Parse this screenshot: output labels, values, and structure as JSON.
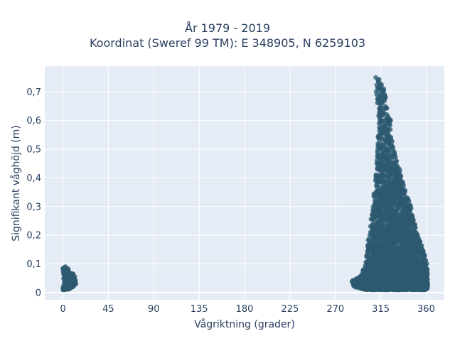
{
  "chart_data": {
    "type": "scatter",
    "title_line1": "År 1979 - 2019",
    "title_line2": "Koordinat (Sweref 99 TM): E 348905, N 6259103",
    "xlabel": "Vågriktning (grader)",
    "ylabel": "Signifikant våghöjd (m)",
    "xlim": [
      -18,
      378
    ],
    "ylim": [
      -0.025,
      0.79
    ],
    "x_ticks": [
      0,
      45,
      90,
      135,
      180,
      225,
      270,
      315,
      360
    ],
    "x_tick_labels": [
      "0",
      "45",
      "90",
      "135",
      "180",
      "225",
      "270",
      "315",
      "360"
    ],
    "y_ticks": [
      0,
      0.1,
      0.2,
      0.3,
      0.4,
      0.5,
      0.6,
      0.7
    ],
    "y_tick_labels": [
      "0",
      "0,1",
      "0,2",
      "0,3",
      "0,4",
      "0,5",
      "0,6",
      "0,7"
    ],
    "marker_color": "#2e5a70",
    "plot_bg": "#E5ECF6",
    "grid": true,
    "clusters": [
      {
        "name": "north",
        "direction_range": [
          0,
          13
        ],
        "height_range": [
          0.01,
          0.095
        ],
        "envelope": [
          [
            0,
            0.01
          ],
          [
            0,
            0.095
          ],
          [
            5,
            0.09
          ],
          [
            10,
            0.07
          ],
          [
            13,
            0.05
          ],
          [
            13,
            0.025
          ],
          [
            5,
            0.01
          ]
        ]
      },
      {
        "name": "northwest",
        "direction_range": [
          286,
          362
        ],
        "height_range": [
          0.01,
          0.75
        ],
        "peak": [
          310,
          0.75
        ],
        "envelope": [
          [
            286,
            0.04
          ],
          [
            295,
            0.06
          ],
          [
            300,
            0.1
          ],
          [
            303,
            0.2
          ],
          [
            307,
            0.3
          ],
          [
            311,
            0.45
          ],
          [
            313,
            0.62
          ],
          [
            310,
            0.7
          ],
          [
            311,
            0.74
          ],
          [
            314,
            0.75
          ],
          [
            318,
            0.72
          ],
          [
            322,
            0.65
          ],
          [
            325,
            0.6
          ],
          [
            328,
            0.5
          ],
          [
            332,
            0.45
          ],
          [
            338,
            0.38
          ],
          [
            345,
            0.3
          ],
          [
            350,
            0.22
          ],
          [
            356,
            0.16
          ],
          [
            361,
            0.1
          ],
          [
            362,
            0.03
          ],
          [
            361,
            0.01
          ],
          [
            300,
            0.01
          ],
          [
            288,
            0.02
          ]
        ]
      }
    ]
  }
}
